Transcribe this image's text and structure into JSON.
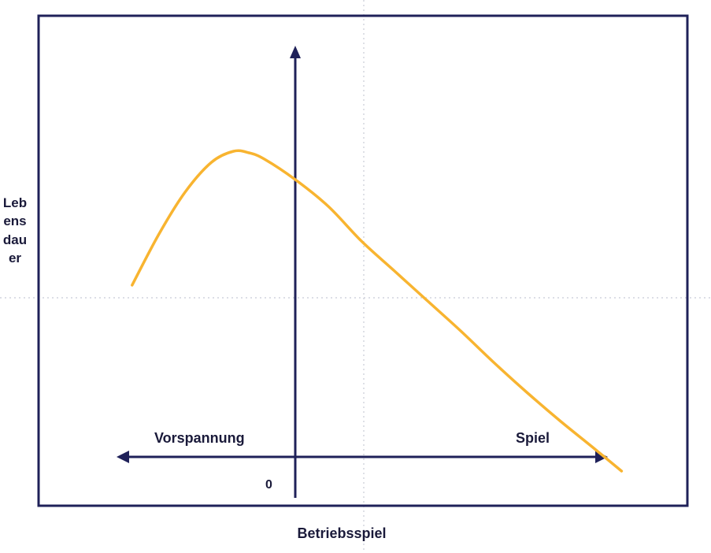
{
  "chart_data": {
    "type": "line",
    "ylabel": "Lebensdauer",
    "xlabel": "Betriebsspiel",
    "left_label": "Vorspannung",
    "right_label": "Spiel",
    "origin_label": "0",
    "xlim": [
      -1,
      1.9
    ],
    "ylim": [
      -1.15,
      1.7
    ],
    "series": [
      {
        "color": "#f8b430",
        "x": [
          -0.74,
          -0.62,
          -0.5,
          -0.38,
          -0.28,
          -0.21,
          -0.14,
          0.0,
          0.15,
          0.3,
          0.45,
          0.6,
          0.75,
          0.9,
          1.05,
          1.2,
          1.35,
          1.48
        ],
        "y": [
          0.08,
          0.4,
          0.67,
          0.86,
          0.93,
          0.92,
          0.88,
          0.75,
          0.58,
          0.36,
          0.17,
          -0.02,
          -0.21,
          -0.41,
          -0.6,
          -0.78,
          -0.95,
          -1.1
        ]
      }
    ],
    "grid": true,
    "legend": "none"
  }
}
